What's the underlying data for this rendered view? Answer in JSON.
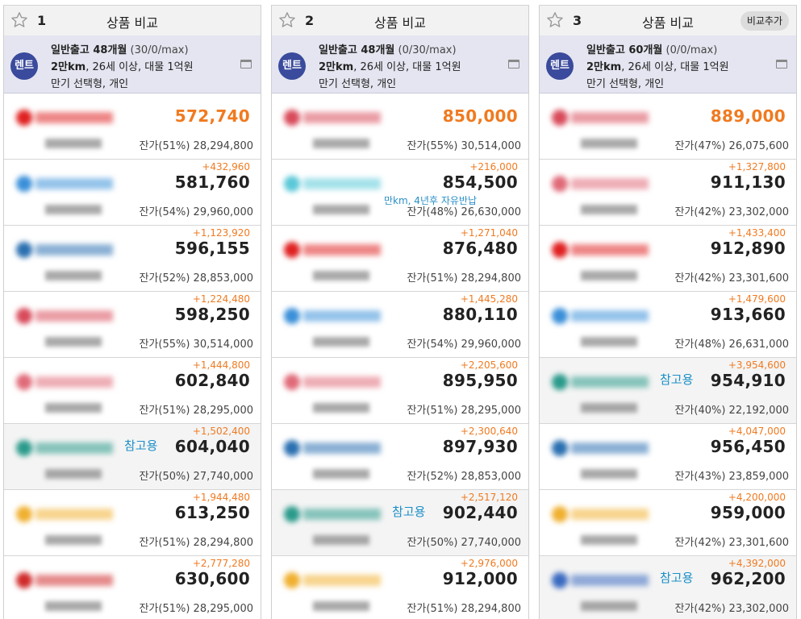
{
  "compare_columns": [
    {
      "number": "1",
      "title": "상품 비교",
      "compare_add_button": "",
      "spec": {
        "badge": "렌트",
        "line1_main": "일반출고 48개월",
        "line1_sub": "(30/0/max)",
        "line2_bold": "2만km",
        "line2_rest": ", 26세 이상, 대물 1억원",
        "line3": "만기 선택형, 개인"
      },
      "rows": [
        {
          "diff": "",
          "price": "572,740",
          "best": true,
          "residual": "잔가(51%) 28,294,800",
          "logo_color": "#e02020",
          "ref_label": "",
          "note": ""
        },
        {
          "diff": "+432,960",
          "price": "581,760",
          "best": false,
          "residual": "잔가(54%) 29,960,000",
          "logo_color": "#3a8fd9",
          "ref_label": "",
          "note": ""
        },
        {
          "diff": "+1,123,920",
          "price": "596,155",
          "best": false,
          "residual": "잔가(52%) 28,853,000",
          "logo_color": "#2a6fb0",
          "ref_label": "",
          "note": ""
        },
        {
          "diff": "+1,224,480",
          "price": "598,250",
          "best": false,
          "residual": "잔가(55%) 30,514,000",
          "logo_color": "#d84a5a",
          "ref_label": "",
          "note": ""
        },
        {
          "diff": "+1,444,800",
          "price": "602,840",
          "best": false,
          "residual": "잔가(51%) 28,295,000",
          "logo_color": "#e06a78",
          "ref_label": "",
          "note": ""
        },
        {
          "diff": "+1,502,400",
          "price": "604,040",
          "best": false,
          "residual": "잔가(50%) 27,740,000",
          "logo_color": "#2a9a8a",
          "ref_label": "참고용",
          "note": ""
        },
        {
          "diff": "+1,944,480",
          "price": "613,250",
          "best": false,
          "residual": "잔가(51%) 28,294,800",
          "logo_color": "#f0b030",
          "ref_label": "",
          "note": ""
        },
        {
          "diff": "+2,777,280",
          "price": "630,600",
          "best": false,
          "residual": "잔가(51%) 28,295,000",
          "logo_color": "#d02a2a",
          "ref_label": "",
          "note": ""
        }
      ]
    },
    {
      "number": "2",
      "title": "상품 비교",
      "compare_add_button": "",
      "spec": {
        "badge": "렌트",
        "line1_main": "일반출고 48개월",
        "line1_sub": "(0/30/max)",
        "line2_bold": "2만km",
        "line2_rest": ", 26세 이상, 대물 1억원",
        "line3": "만기 선택형, 개인"
      },
      "rows": [
        {
          "diff": "",
          "price": "850,000",
          "best": true,
          "residual": "잔가(55%) 30,514,000",
          "logo_color": "#d84a5a",
          "ref_label": "",
          "note": ""
        },
        {
          "diff": "+216,000",
          "price": "854,500",
          "best": false,
          "residual": "잔가(48%) 26,630,000",
          "logo_color": "#5ac8d8",
          "ref_label": "",
          "note": "만km, 4년후 자유반납"
        },
        {
          "diff": "+1,271,040",
          "price": "876,480",
          "best": false,
          "residual": "잔가(51%) 28,294,800",
          "logo_color": "#e02020",
          "ref_label": "",
          "note": ""
        },
        {
          "diff": "+1,445,280",
          "price": "880,110",
          "best": false,
          "residual": "잔가(54%) 29,960,000",
          "logo_color": "#3a8fd9",
          "ref_label": "",
          "note": ""
        },
        {
          "diff": "+2,205,600",
          "price": "895,950",
          "best": false,
          "residual": "잔가(51%) 28,295,000",
          "logo_color": "#e06a78",
          "ref_label": "",
          "note": ""
        },
        {
          "diff": "+2,300,640",
          "price": "897,930",
          "best": false,
          "residual": "잔가(52%) 28,853,000",
          "logo_color": "#2a6fb0",
          "ref_label": "",
          "note": ""
        },
        {
          "diff": "+2,517,120",
          "price": "902,440",
          "best": false,
          "residual": "잔가(50%) 27,740,000",
          "logo_color": "#2a9a8a",
          "ref_label": "참고용",
          "note": ""
        },
        {
          "diff": "+2,976,000",
          "price": "912,000",
          "best": false,
          "residual": "잔가(51%) 28,294,800",
          "logo_color": "#f0b030",
          "ref_label": "",
          "note": ""
        }
      ]
    },
    {
      "number": "3",
      "title": "상품 비교",
      "compare_add_button": "비교추가",
      "spec": {
        "badge": "렌트",
        "line1_main": "일반출고 60개월",
        "line1_sub": "(0/0/max)",
        "line2_bold": "2만km",
        "line2_rest": ", 26세 이상, 대물 1억원",
        "line3": "만기 선택형, 개인"
      },
      "rows": [
        {
          "diff": "",
          "price": "889,000",
          "best": true,
          "residual": "잔가(47%) 26,075,600",
          "logo_color": "#d84a5a",
          "ref_label": "",
          "note": ""
        },
        {
          "diff": "+1,327,800",
          "price": "911,130",
          "best": false,
          "residual": "잔가(42%) 23,302,000",
          "logo_color": "#e06a78",
          "ref_label": "",
          "note": ""
        },
        {
          "diff": "+1,433,400",
          "price": "912,890",
          "best": false,
          "residual": "잔가(42%) 23,301,600",
          "logo_color": "#e02020",
          "ref_label": "",
          "note": ""
        },
        {
          "diff": "+1,479,600",
          "price": "913,660",
          "best": false,
          "residual": "잔가(48%) 26,631,000",
          "logo_color": "#3a8fd9",
          "ref_label": "",
          "note": ""
        },
        {
          "diff": "+3,954,600",
          "price": "954,910",
          "best": false,
          "residual": "잔가(40%) 22,192,000",
          "logo_color": "#2a9a8a",
          "ref_label": "참고용",
          "note": ""
        },
        {
          "diff": "+4,047,000",
          "price": "956,450",
          "best": false,
          "residual": "잔가(43%) 23,859,000",
          "logo_color": "#2a6fb0",
          "ref_label": "",
          "note": ""
        },
        {
          "diff": "+4,200,000",
          "price": "959,000",
          "best": false,
          "residual": "잔가(42%) 23,301,600",
          "logo_color": "#f0b030",
          "ref_label": "",
          "note": ""
        },
        {
          "diff": "+4,392,000",
          "price": "962,200",
          "best": false,
          "residual": "잔가(42%) 23,302,000",
          "logo_color": "#3a6ac0",
          "ref_label": "참고용",
          "note": ""
        }
      ]
    }
  ]
}
